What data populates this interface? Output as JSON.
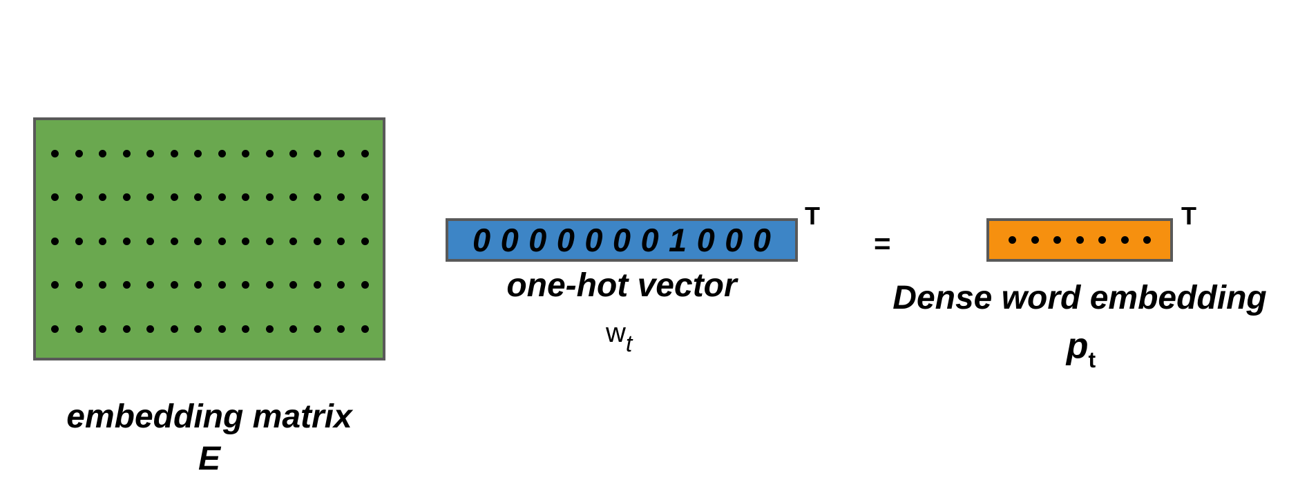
{
  "embedding_matrix": {
    "label": "embedding matrix",
    "symbol": "E",
    "rows": 5,
    "cols": 14,
    "fill_color": "#6aa84f"
  },
  "one_hot_vector": {
    "digits": [
      "0",
      "0",
      "0",
      "0",
      "0",
      "0",
      "0",
      "1",
      "0",
      "0",
      "0"
    ],
    "transpose_mark": "T",
    "label": "one-hot vector",
    "symbol": "w",
    "symbol_subscript": "t",
    "fill_color": "#3d85c6"
  },
  "equals_sign": "=",
  "dense_embedding": {
    "dots": 7,
    "transpose_mark": "T",
    "label": "Dense word embedding",
    "symbol": "p",
    "symbol_subscript": "t",
    "fill_color": "#f6900f"
  },
  "border_color": "#595959"
}
